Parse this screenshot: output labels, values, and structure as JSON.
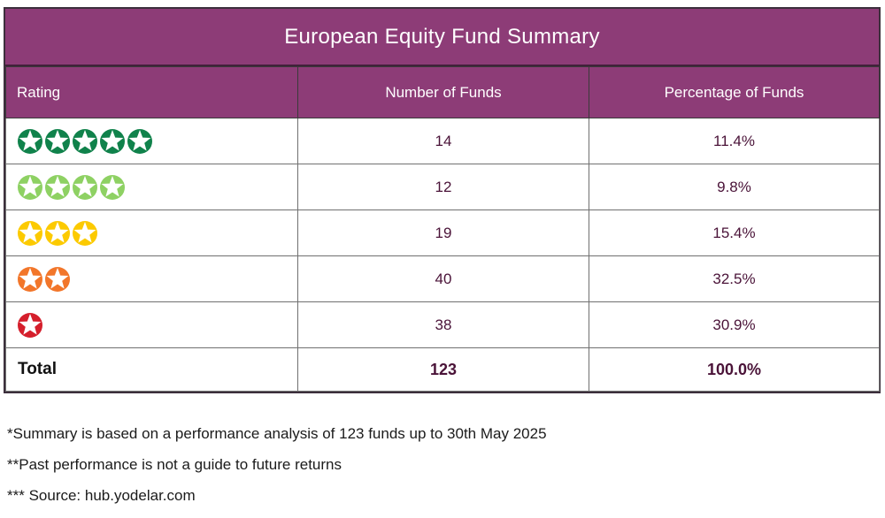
{
  "title": "European Equity Fund Summary",
  "columns": {
    "rating": "Rating",
    "number_of_funds": "Number of Funds",
    "percentage_of_funds": "Percentage of Funds"
  },
  "rows": [
    {
      "stars": 5,
      "star_color": "#10824b",
      "funds": "14",
      "percent": "11.4%"
    },
    {
      "stars": 4,
      "star_color": "#8ed163",
      "funds": "12",
      "percent": "9.8%"
    },
    {
      "stars": 3,
      "star_color": "#fcca00",
      "funds": "19",
      "percent": "15.4%"
    },
    {
      "stars": 2,
      "star_color": "#f2762a",
      "funds": "40",
      "percent": "32.5%"
    },
    {
      "stars": 1,
      "star_color": "#d51f2c",
      "funds": "38",
      "percent": "30.9%"
    }
  ],
  "total": {
    "label": "Total",
    "funds": "123",
    "percent": "100.0%"
  },
  "footnotes": [
    "*Summary is based on a performance analysis of 123 funds up to 30th May 2025",
    "**Past performance is not a guide to future returns",
    "*** Source: hub.yodelar.com"
  ],
  "colors": {
    "header_bg": "#8d3c77",
    "value_text": "#4a1338",
    "border_dark": "#3c2f3c",
    "grid_gray": "#707070"
  },
  "chart_data": {
    "type": "table",
    "title": "European Equity Fund Summary",
    "columns": [
      "Rating",
      "Number of Funds",
      "Percentage of Funds"
    ],
    "rows": [
      {
        "rating_stars": 5,
        "number_of_funds": 14,
        "percentage_of_funds": 11.4
      },
      {
        "rating_stars": 4,
        "number_of_funds": 12,
        "percentage_of_funds": 9.8
      },
      {
        "rating_stars": 3,
        "number_of_funds": 19,
        "percentage_of_funds": 15.4
      },
      {
        "rating_stars": 2,
        "number_of_funds": 40,
        "percentage_of_funds": 32.5
      },
      {
        "rating_stars": 1,
        "number_of_funds": 38,
        "percentage_of_funds": 30.9
      }
    ],
    "total": {
      "label": "Total",
      "number_of_funds": 123,
      "percentage_of_funds": 100.0
    }
  }
}
